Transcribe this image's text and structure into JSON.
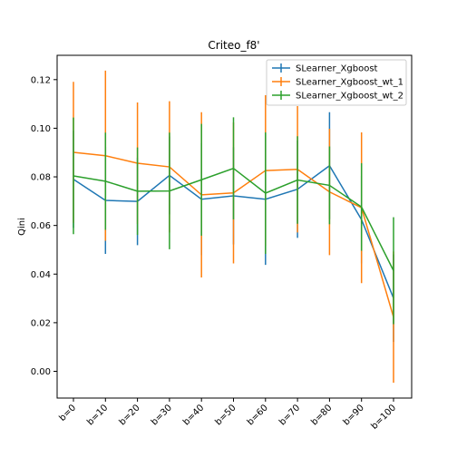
{
  "chart_data": {
    "type": "line",
    "title": "Criteo_f8'",
    "xlabel": "",
    "ylabel": "Qini",
    "categories": [
      "b=0",
      "b=10",
      "b=20",
      "b=30",
      "b=40",
      "b=50",
      "b=60",
      "b=70",
      "b=80",
      "b=90",
      "b=100"
    ],
    "ylim": [
      -0.011,
      0.13
    ],
    "yticks": [
      0.0,
      0.02,
      0.04,
      0.06,
      0.08,
      0.1,
      0.12
    ],
    "ytick_labels": [
      "0.00",
      "0.02",
      "0.04",
      "0.06",
      "0.08",
      "0.10",
      "0.12"
    ],
    "legend_position": "top-right",
    "grid": false,
    "series": [
      {
        "name": "SLearner_Xgboost",
        "color": "#1f77b4",
        "values": [
          0.079,
          0.0703,
          0.0699,
          0.0806,
          0.0708,
          0.0722,
          0.0708,
          0.0749,
          0.0846,
          0.0624,
          0.0301
        ],
        "errors": [
          0.02,
          0.022,
          0.018,
          0.016,
          0.023,
          0.02,
          0.027,
          0.02,
          0.022,
          0.018,
          0.018
        ]
      },
      {
        "name": "SLearner_Xgboost_wt_1",
        "color": "#ff7f0e",
        "values": [
          0.0901,
          0.0887,
          0.0856,
          0.0841,
          0.0726,
          0.0734,
          0.0826,
          0.0831,
          0.0738,
          0.0673,
          0.0223
        ],
        "errors": [
          0.029,
          0.035,
          0.025,
          0.027,
          0.034,
          0.029,
          0.031,
          0.026,
          0.026,
          0.031,
          0.027
        ]
      },
      {
        "name": "SLearner_Xgboost_wt_2",
        "color": "#2ca02c",
        "values": [
          0.0804,
          0.0782,
          0.0741,
          0.0742,
          0.0788,
          0.0835,
          0.0733,
          0.0787,
          0.0765,
          0.0676,
          0.0414
        ],
        "errors": [
          0.024,
          0.02,
          0.018,
          0.024,
          0.023,
          0.021,
          0.025,
          0.018,
          0.016,
          0.018,
          0.022
        ]
      }
    ]
  }
}
